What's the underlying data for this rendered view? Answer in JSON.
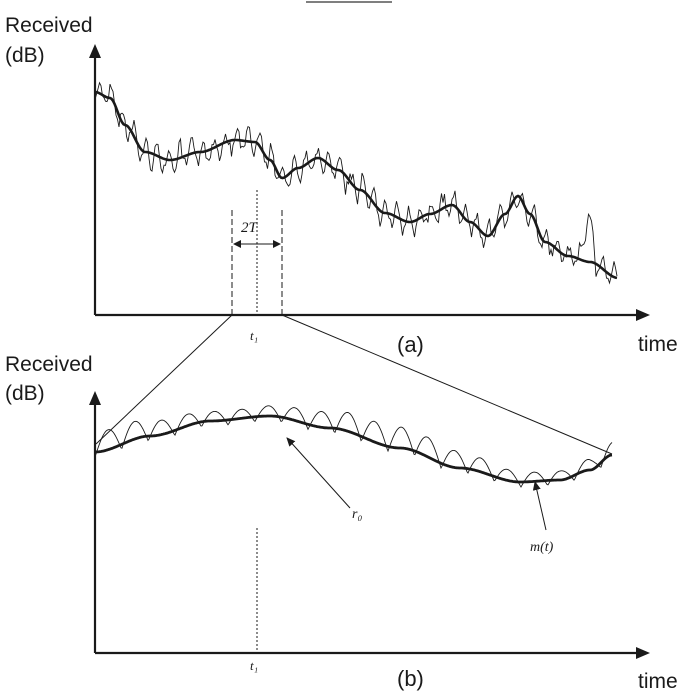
{
  "panel_a": {
    "y_label_line1": "Received",
    "y_label_line2": "(dB)",
    "x_label": "time",
    "caption": "(a)",
    "window_label": "2T",
    "t_label": "t₁"
  },
  "panel_b": {
    "y_label_line1": "Received",
    "y_label_line2": "(dB)",
    "x_label": "time",
    "caption": "(b)",
    "t_label": "t₁",
    "instantaneous_label": "r₀",
    "mean_label": "m(t)"
  },
  "colors": {
    "ink": "#1a1a1a",
    "background": "#ffffff"
  }
}
